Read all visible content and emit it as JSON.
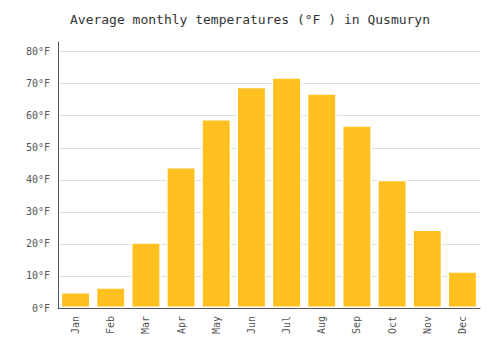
{
  "chart_data": {
    "type": "bar",
    "title": "Average monthly temperatures (°F ) in Qusmuryn",
    "categories": [
      "Jan",
      "Feb",
      "Mar",
      "Apr",
      "May",
      "Jun",
      "Jul",
      "Aug",
      "Sep",
      "Oct",
      "Nov",
      "Dec"
    ],
    "values": [
      5,
      6.5,
      20.5,
      44,
      59,
      69,
      72,
      67,
      57,
      40,
      24.5,
      11.5
    ],
    "color": "#FFC020",
    "ylim": [
      0,
      83
    ],
    "yticks": [
      {
        "value": 0,
        "label": "0°F"
      },
      {
        "value": 10,
        "label": "10°F"
      },
      {
        "value": 20,
        "label": "20°F"
      },
      {
        "value": 30,
        "label": "30°F"
      },
      {
        "value": 40,
        "label": "40°F"
      },
      {
        "value": 50,
        "label": "50°F"
      },
      {
        "value": 60,
        "label": "60°F"
      },
      {
        "value": 70,
        "label": "70°F"
      },
      {
        "value": 80,
        "label": "80°F"
      }
    ],
    "grid": true
  }
}
